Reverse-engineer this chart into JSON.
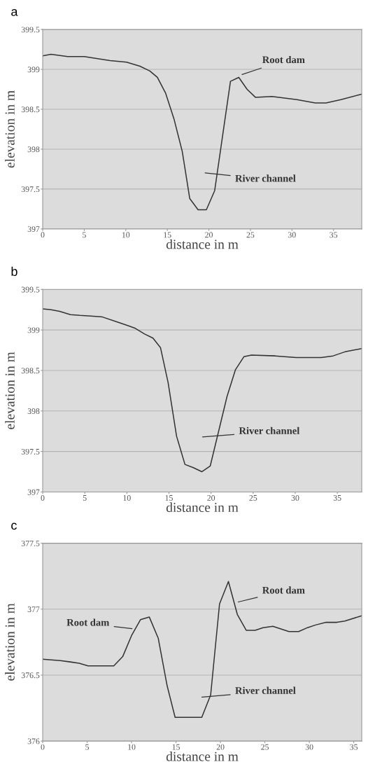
{
  "chart_data": [
    {
      "type": "line",
      "title": "a",
      "xlabel": "distance in m",
      "ylabel": "elevation in m",
      "xlim": [
        0,
        38.4
      ],
      "xticks": [
        0,
        5,
        10,
        15,
        20,
        25,
        30,
        35
      ],
      "ylim": [
        397,
        399.5
      ],
      "yticks": [
        397,
        397.5,
        398,
        398.5,
        399,
        399.5
      ],
      "grid": "y",
      "marker": "none",
      "line_style": "solid",
      "series": [
        {
          "color": "#333333",
          "x": [
            0,
            1.0,
            3.0,
            5,
            8.1,
            10.1,
            11.7,
            12.9,
            13.8,
            14.8,
            15.8,
            16.8,
            17.7,
            18.7,
            19.7,
            20.7,
            22.6,
            23.6,
            24.6,
            25.6,
            27.6,
            30.6,
            32.8,
            34.1,
            35.9,
            38.4
          ],
          "values": [
            399.17,
            399.19,
            399.16,
            399.16,
            399.11,
            399.09,
            399.04,
            398.98,
            398.9,
            398.7,
            398.38,
            397.97,
            397.38,
            397.24,
            397.24,
            397.48,
            398.85,
            398.9,
            398.75,
            398.65,
            398.66,
            398.62,
            398.58,
            398.58,
            398.62,
            398.69
          ]
        }
      ],
      "annotations": [
        "Root dam",
        "River channel"
      ]
    },
    {
      "type": "line",
      "title": "b",
      "xlabel": "distance in m",
      "ylabel": "elevation in m",
      "xlim": [
        0,
        37.9
      ],
      "xticks": [
        0,
        5,
        10,
        15,
        20,
        25,
        30,
        35
      ],
      "ylim": [
        397,
        399.5
      ],
      "yticks": [
        397,
        397.5,
        398,
        398.5,
        399,
        399.5
      ],
      "grid": "y",
      "marker": "none",
      "line_style": "solid",
      "series": [
        {
          "color": "#333333",
          "x": [
            0,
            1,
            2,
            3.3,
            4.4,
            6,
            7.1,
            8.8,
            10.2,
            11,
            12.1,
            13.1,
            14,
            14.9,
            15.9,
            16.9,
            17.9,
            18.9,
            19.9,
            21.9,
            22.9,
            23.9,
            24.8,
            27.6,
            30.1,
            33.1,
            34.5,
            35.9,
            37.9
          ],
          "values": [
            399.26,
            399.25,
            399.23,
            399.19,
            399.18,
            399.17,
            399.16,
            399.1,
            399.05,
            399.02,
            398.95,
            398.9,
            398.78,
            398.35,
            397.69,
            397.34,
            397.3,
            397.25,
            397.32,
            398.18,
            398.51,
            398.67,
            398.69,
            398.68,
            398.66,
            398.66,
            398.68,
            398.73,
            398.77
          ]
        }
      ],
      "annotations": [
        "River channel"
      ]
    },
    {
      "type": "line",
      "title": "c",
      "xlabel": "distance in m",
      "ylabel": "elevation in m",
      "xlim": [
        0,
        35.9
      ],
      "xticks": [
        0,
        5,
        10,
        15,
        20,
        25,
        30,
        35
      ],
      "ylim": [
        376,
        377.5
      ],
      "yticks": [
        376,
        376.5,
        377,
        377.5
      ],
      "grid": "y",
      "marker": "none",
      "line_style": "solid",
      "series": [
        {
          "color": "#333333",
          "x": [
            0,
            2,
            3.1,
            4.1,
            5.1,
            8,
            9.0,
            10,
            11,
            12,
            13,
            14,
            14.9,
            17.9,
            18.9,
            19.9,
            20.9,
            21.9,
            22.9,
            23.9,
            24.8,
            25.9,
            27.7,
            28.8,
            29.8,
            30.7,
            31.9,
            33.1,
            34,
            35.9
          ],
          "values": [
            376.62,
            376.61,
            376.6,
            376.59,
            376.57,
            376.57,
            376.64,
            376.8,
            376.92,
            376.94,
            376.78,
            376.42,
            376.18,
            376.18,
            376.35,
            377.04,
            377.21,
            376.96,
            376.84,
            376.84,
            376.86,
            376.87,
            376.83,
            376.83,
            376.86,
            376.88,
            376.9,
            376.9,
            376.91,
            376.95
          ]
        }
      ],
      "annotations": [
        "Root dam",
        "Root dam",
        "River channel"
      ]
    }
  ]
}
